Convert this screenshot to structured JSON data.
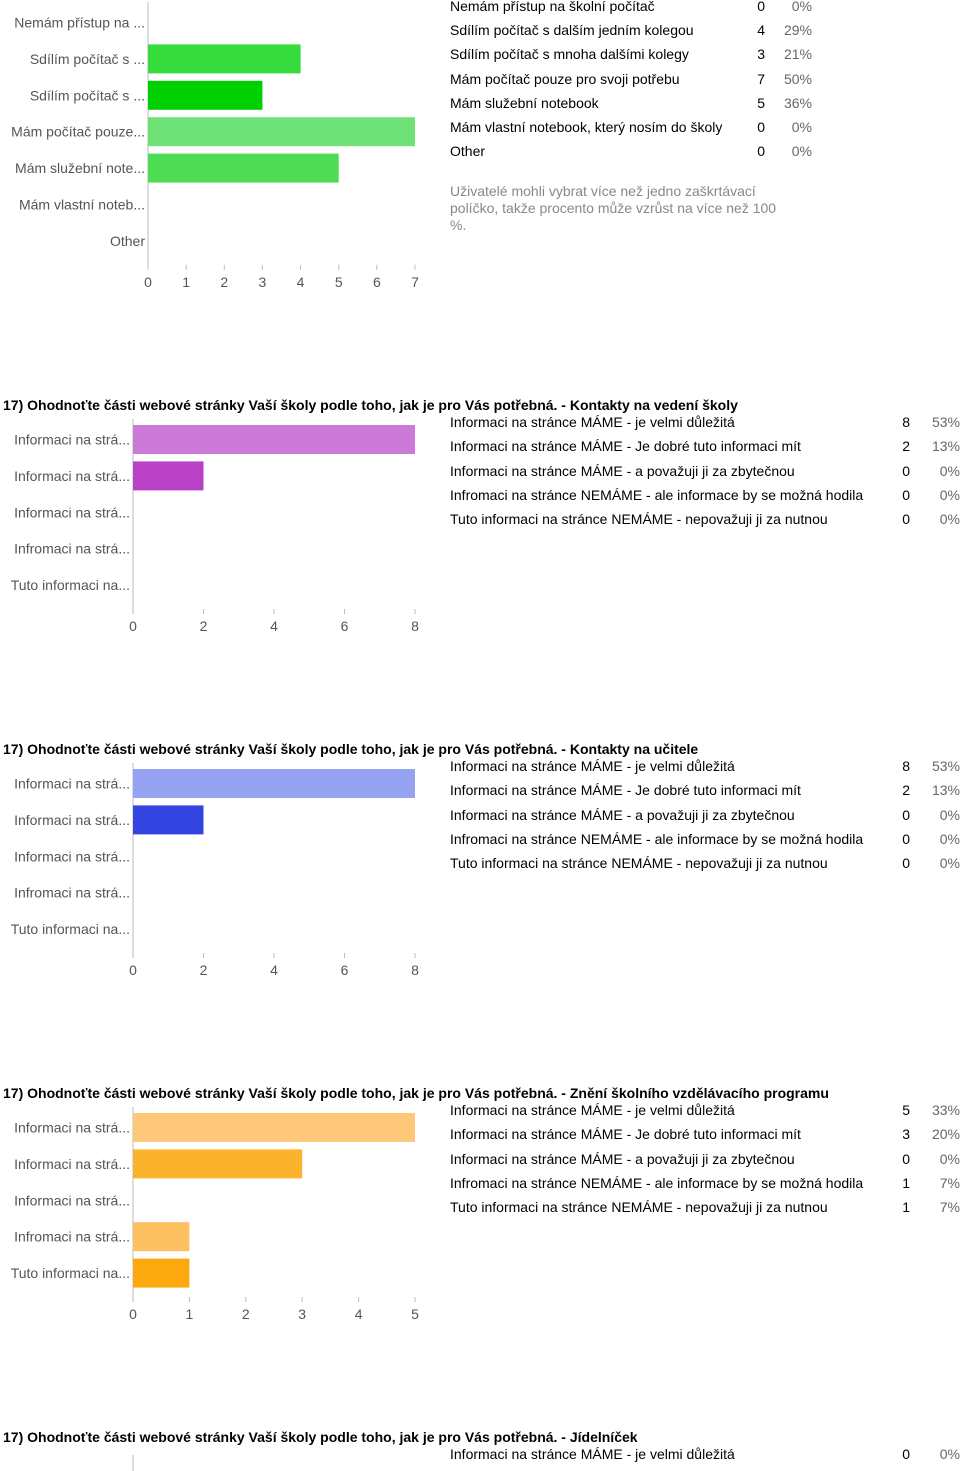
{
  "chart_data": [
    {
      "type": "bar",
      "title": "",
      "categories": [
        "Nemám přístup na ...",
        "Sdílím počítač s ...",
        "Sdílím počítač s ...",
        "Mám počítač pouze...",
        "Mám služební note...",
        "Mám vlastní noteb...",
        "Other"
      ],
      "values": [
        0,
        4,
        3,
        7,
        5,
        0,
        0
      ],
      "colors": [
        "#2bd43e",
        "#36dc3c",
        "#00d000",
        "#6fe277",
        "#4fdc55",
        "#2bd43e",
        "#2bd43e"
      ],
      "xticks": [
        "0",
        "1",
        "2",
        "3",
        "4",
        "5",
        "6",
        "7"
      ],
      "xlim": [
        0,
        7
      ],
      "legend": [
        {
          "label": "Nemám přístup na školní počítač",
          "count": "0",
          "pct": "0%"
        },
        {
          "label": "Sdílím počítač s dalším jedním kolegou",
          "count": "4",
          "pct": "29%"
        },
        {
          "label": "Sdílím počítač s mnoha dalšími kolegy",
          "count": "3",
          "pct": "21%"
        },
        {
          "label": "Mám počítač pouze pro svoji potřebu",
          "count": "7",
          "pct": "50%"
        },
        {
          "label": "Mám služební notebook",
          "count": "5",
          "pct": "36%"
        },
        {
          "label": "Mám vlastní notebook, který nosím do školy",
          "count": "0",
          "pct": "0%"
        },
        {
          "label": "Other",
          "count": "0",
          "pct": "0%"
        }
      ],
      "note": "Uživatelé mohli vybrat více než jedno zaškrtávací políčko, takže procento může vzrůst na více než 100 %."
    },
    {
      "type": "bar",
      "title": "17) Ohodnoťte části webové stránky Vaší školy podle toho, jak je pro Vás potřebná. - Kontakty na vedení školy",
      "categories": [
        "Informaci na strá...",
        "Informaci na strá...",
        "Informaci na strá...",
        "Infromaci na strá...",
        "Tuto informaci na..."
      ],
      "values": [
        8,
        2,
        0,
        0,
        0
      ],
      "colors": [
        "#cc7ad8",
        "#b841c6",
        "#cc7ad8",
        "#cc7ad8",
        "#cc7ad8"
      ],
      "xticks": [
        "0",
        "2",
        "4",
        "6",
        "8"
      ],
      "xlim": [
        0,
        8
      ],
      "legend": [
        {
          "label": "Informaci na stránce MÁME - je velmi důležitá",
          "count": "8",
          "pct": "53%"
        },
        {
          "label": "Informaci na stránce MÁME - Je dobré tuto informaci mít",
          "count": "2",
          "pct": "13%"
        },
        {
          "label": "Informaci na stránce MÁME - a považuji ji za zbytečnou",
          "count": "0",
          "pct": "0%"
        },
        {
          "label": "Infromaci na stránce NEMÁME - ale informace by se možná hodila",
          "count": "0",
          "pct": "0%"
        },
        {
          "label": "Tuto informaci na stránce NEMÁME - nepovažuji ji za nutnou",
          "count": "0",
          "pct": "0%"
        }
      ]
    },
    {
      "type": "bar",
      "title": "17) Ohodnoťte části webové stránky Vaší školy podle toho, jak je pro Vás potřebná. - Kontakty na učitele",
      "categories": [
        "Informaci na strá...",
        "Informaci na strá...",
        "Informaci na strá...",
        "Infromaci na strá...",
        "Tuto informaci na..."
      ],
      "values": [
        8,
        2,
        0,
        0,
        0
      ],
      "colors": [
        "#96a2f2",
        "#3344e0",
        "#96a2f2",
        "#96a2f2",
        "#96a2f2"
      ],
      "xticks": [
        "0",
        "2",
        "4",
        "6",
        "8"
      ],
      "xlim": [
        0,
        8
      ],
      "legend": [
        {
          "label": "Informaci na stránce MÁME - je velmi důležitá",
          "count": "8",
          "pct": "53%"
        },
        {
          "label": "Informaci na stránce MÁME - Je dobré tuto informaci mít",
          "count": "2",
          "pct": "13%"
        },
        {
          "label": "Informaci na stránce MÁME - a považuji ji za zbytečnou",
          "count": "0",
          "pct": "0%"
        },
        {
          "label": "Infromaci na stránce NEMÁME - ale informace by se možná hodila",
          "count": "0",
          "pct": "0%"
        },
        {
          "label": "Tuto informaci na stránce NEMÁME - nepovažuji ji za nutnou",
          "count": "0",
          "pct": "0%"
        }
      ]
    },
    {
      "type": "bar",
      "title": "17) Ohodnoťte části webové stránky Vaší školy podle toho, jak je pro Vás potřebná. - Znění školního vzdělávacího programu",
      "categories": [
        "Informaci na strá...",
        "Informaci na strá...",
        "Informaci na strá...",
        "Infromaci na strá...",
        "Tuto informaci na..."
      ],
      "values": [
        5,
        3,
        0,
        1,
        1
      ],
      "colors": [
        "#fdc87a",
        "#fbb32e",
        "#fdc87a",
        "#fdc060",
        "#fba90e"
      ],
      "xticks": [
        "0",
        "1",
        "2",
        "3",
        "4",
        "5"
      ],
      "xlim": [
        0,
        5
      ],
      "legend": [
        {
          "label": "Informaci na stránce MÁME - je velmi důležitá",
          "count": "5",
          "pct": "33%"
        },
        {
          "label": "Informaci na stránce MÁME - Je dobré tuto informaci mít",
          "count": "3",
          "pct": "20%"
        },
        {
          "label": "Informaci na stránce MÁME - a považuji ji za zbytečnou",
          "count": "0",
          "pct": "0%"
        },
        {
          "label": "Infromaci na stránce NEMÁME - ale informace by se možná hodila",
          "count": "1",
          "pct": "7%"
        },
        {
          "label": "Tuto informaci na stránce NEMÁME - nepovažuji ji za nutnou",
          "count": "1",
          "pct": "7%"
        }
      ]
    },
    {
      "type": "bar",
      "title": "17) Ohodnoťte části webové stránky Vaší školy podle toho, jak je pro Vás potřebná. - Jídelníček",
      "categories": [],
      "values": [],
      "legend": [
        {
          "label": "Informaci na stránce MÁME - je velmi důležitá",
          "count": "0",
          "pct": "0%"
        }
      ]
    }
  ]
}
